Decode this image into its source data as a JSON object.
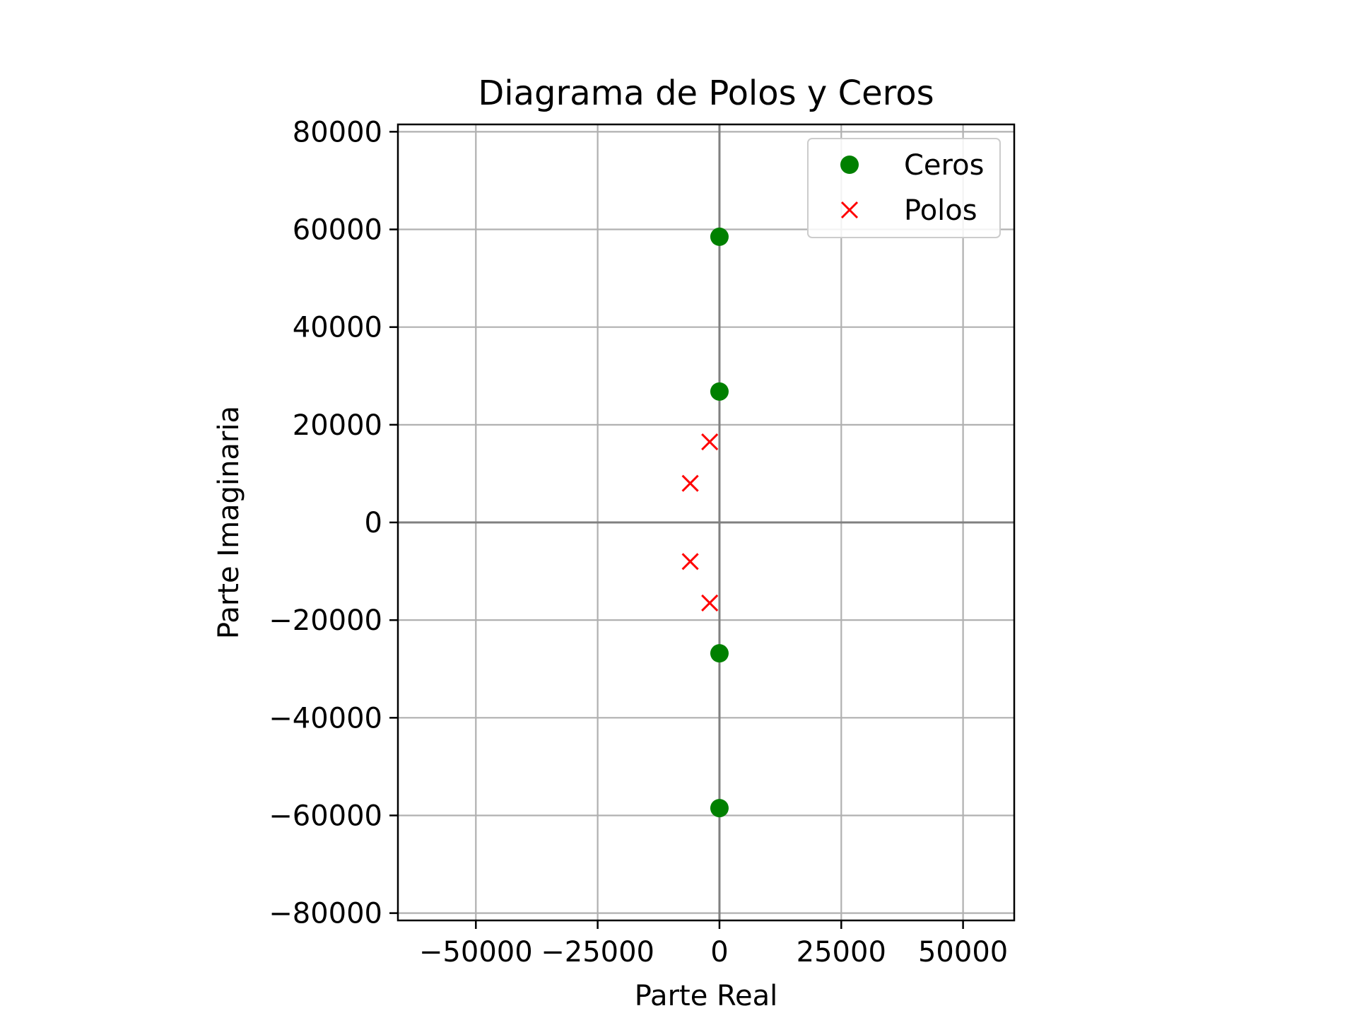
{
  "chart_data": {
    "type": "scatter",
    "title": "Diagrama de Polos y Ceros",
    "xlabel": "Parte Real",
    "ylabel": "Parte Imaginaria",
    "xlim": [
      -66000,
      60500
    ],
    "ylim": [
      -81500,
      81500
    ],
    "xticks": [
      -50000,
      -25000,
      0,
      25000,
      50000
    ],
    "xtick_labels": [
      "−50000",
      "−25000",
      "0",
      "25000",
      "50000"
    ],
    "yticks": [
      -80000,
      -60000,
      -40000,
      -20000,
      0,
      20000,
      40000,
      60000,
      80000
    ],
    "ytick_labels": [
      "−80000",
      "−60000",
      "−40000",
      "−20000",
      "0",
      "20000",
      "40000",
      "60000",
      "80000"
    ],
    "grid": true,
    "legend_position": "top-right",
    "series": [
      {
        "name": "Ceros",
        "marker": "circle",
        "color": "#008000",
        "points": [
          {
            "x": 0,
            "y": 58500
          },
          {
            "x": 0,
            "y": 26800
          },
          {
            "x": 0,
            "y": -26800
          },
          {
            "x": 0,
            "y": -58500
          }
        ]
      },
      {
        "name": "Polos",
        "marker": "x",
        "color": "#ff0000",
        "points": [
          {
            "x": -2000,
            "y": 16500
          },
          {
            "x": -6000,
            "y": 8000
          },
          {
            "x": -6000,
            "y": -8000
          },
          {
            "x": -2000,
            "y": -16500
          }
        ]
      }
    ]
  }
}
